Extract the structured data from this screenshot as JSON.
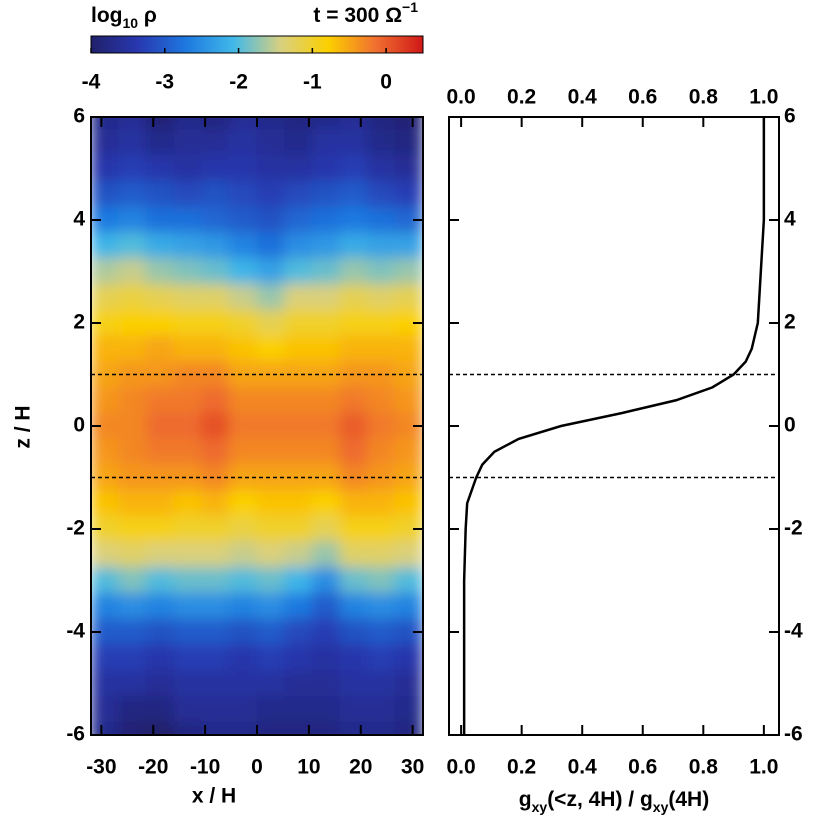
{
  "chart_data": [
    {
      "type": "heatmap",
      "title": [
        {
          "text": "t = 300 Ω"
        },
        {
          "text": "−1",
          "sup": true
        }
      ],
      "colorbar_label": [
        {
          "text": "log"
        },
        {
          "text": "10",
          "sub": true
        },
        {
          "text": " ρ"
        }
      ],
      "xlabel": "x / H",
      "ylabel": "z / H",
      "xlim": [
        -32,
        32
      ],
      "xticks": [
        -30,
        -20,
        -10,
        0,
        10,
        20,
        30
      ],
      "ylim": [
        -6,
        6
      ],
      "yticks": [
        -6,
        -4,
        -2,
        0,
        2,
        4,
        6
      ],
      "zlim": [
        -4,
        0.5
      ],
      "zticks": [
        -4,
        -3,
        -2,
        -1,
        0
      ],
      "colormap": [
        "#20206a",
        "#2838b0",
        "#1e78e0",
        "#40b8e8",
        "#d8d080",
        "#fcd000",
        "#f07030",
        "#d01818"
      ],
      "hlines": [
        -1,
        1
      ],
      "x": [
        -29.3,
        -24,
        -18.7,
        -13.3,
        -8,
        -2.7,
        2.7,
        8,
        13.3,
        18.7,
        24,
        29.3
      ],
      "y": [
        6,
        5.5,
        5,
        4.5,
        4,
        3.5,
        3,
        2.5,
        2,
        1.5,
        1,
        0.5,
        0,
        -0.5,
        -1,
        -1.5,
        -2,
        -2.5,
        -3,
        -3.5,
        -4,
        -4.5,
        -5,
        -5.5,
        -6
      ],
      "values": [
        [
          -3.7,
          -3.6,
          -3.9,
          -3.7,
          -3.8,
          -3.6,
          -3.7,
          -3.8,
          -3.7,
          -3.6,
          -3.8,
          -3.9
        ],
        [
          -3.6,
          -3.5,
          -3.7,
          -3.6,
          -3.6,
          -3.5,
          -3.6,
          -3.7,
          -3.5,
          -3.5,
          -3.7,
          -3.8
        ],
        [
          -3.4,
          -3.3,
          -3.4,
          -3.5,
          -3.4,
          -3.4,
          -3.5,
          -3.5,
          -3.4,
          -3.3,
          -3.5,
          -3.6
        ],
        [
          -3.1,
          -3.0,
          -3.1,
          -3.2,
          -3.1,
          -3.2,
          -3.3,
          -3.2,
          -3.1,
          -3.0,
          -3.2,
          -3.3
        ],
        [
          -2.7,
          -2.6,
          -2.8,
          -2.8,
          -2.9,
          -3.0,
          -3.1,
          -2.9,
          -2.8,
          -2.7,
          -2.8,
          -2.9
        ],
        [
          -2.1,
          -2.0,
          -2.2,
          -2.3,
          -2.4,
          -2.6,
          -2.8,
          -2.5,
          -2.4,
          -2.2,
          -2.3,
          -2.3
        ],
        [
          -1.6,
          -1.5,
          -1.7,
          -1.8,
          -1.9,
          -2.1,
          -2.3,
          -2.0,
          -1.9,
          -1.7,
          -1.8,
          -1.7
        ],
        [
          -1.2,
          -1.1,
          -1.2,
          -1.3,
          -1.3,
          -1.5,
          -1.7,
          -1.4,
          -1.4,
          -1.2,
          -1.3,
          -1.2
        ],
        [
          -0.9,
          -0.8,
          -0.8,
          -0.9,
          -0.9,
          -1.0,
          -1.2,
          -1.0,
          -1.0,
          -0.9,
          -0.9,
          -0.8
        ],
        [
          -0.6,
          -0.6,
          -0.5,
          -0.6,
          -0.6,
          -0.7,
          -0.8,
          -0.7,
          -0.7,
          -0.6,
          -0.6,
          -0.6
        ],
        [
          -0.5,
          -0.4,
          -0.4,
          -0.3,
          -0.3,
          -0.5,
          -0.5,
          -0.5,
          -0.5,
          -0.4,
          -0.4,
          -0.5
        ],
        [
          -0.4,
          -0.3,
          -0.2,
          -0.2,
          -0.1,
          -0.3,
          -0.3,
          -0.3,
          -0.3,
          -0.2,
          -0.3,
          -0.4
        ],
        [
          -0.3,
          -0.3,
          -0.1,
          -0.1,
          0.1,
          -0.2,
          -0.2,
          -0.2,
          -0.2,
          0.0,
          -0.2,
          -0.3
        ],
        [
          -0.4,
          -0.3,
          -0.2,
          -0.2,
          -0.1,
          -0.3,
          -0.3,
          -0.3,
          -0.3,
          -0.1,
          -0.3,
          -0.4
        ],
        [
          -0.5,
          -0.4,
          -0.4,
          -0.4,
          -0.3,
          -0.5,
          -0.5,
          -0.5,
          -0.5,
          -0.3,
          -0.4,
          -0.5
        ],
        [
          -0.7,
          -0.6,
          -0.6,
          -0.7,
          -0.6,
          -0.8,
          -0.7,
          -0.7,
          -0.8,
          -0.6,
          -0.6,
          -0.7
        ],
        [
          -1.0,
          -0.9,
          -0.9,
          -1.0,
          -1.0,
          -1.1,
          -1.0,
          -1.0,
          -1.2,
          -0.9,
          -0.9,
          -1.0
        ],
        [
          -1.4,
          -1.3,
          -1.4,
          -1.4,
          -1.4,
          -1.5,
          -1.4,
          -1.5,
          -1.7,
          -1.3,
          -1.3,
          -1.4
        ],
        [
          -2.0,
          -1.8,
          -2.0,
          -1.9,
          -1.9,
          -2.0,
          -1.9,
          -2.1,
          -2.5,
          -1.9,
          -1.8,
          -2.0
        ],
        [
          -2.6,
          -2.5,
          -2.6,
          -2.5,
          -2.5,
          -2.6,
          -2.5,
          -2.7,
          -3.0,
          -2.6,
          -2.5,
          -2.6
        ],
        [
          -3.0,
          -3.0,
          -3.1,
          -3.0,
          -3.0,
          -3.1,
          -3.0,
          -3.2,
          -3.3,
          -3.1,
          -3.0,
          -3.1
        ],
        [
          -3.3,
          -3.3,
          -3.4,
          -3.3,
          -3.3,
          -3.4,
          -3.3,
          -3.4,
          -3.5,
          -3.4,
          -3.3,
          -3.4
        ],
        [
          -3.5,
          -3.5,
          -3.6,
          -3.5,
          -3.5,
          -3.5,
          -3.5,
          -3.6,
          -3.6,
          -3.5,
          -3.5,
          -3.6
        ],
        [
          -3.6,
          -3.8,
          -3.8,
          -3.6,
          -3.6,
          -3.6,
          -3.7,
          -3.7,
          -3.7,
          -3.6,
          -3.6,
          -3.7
        ],
        [
          -3.7,
          -3.9,
          -4.0,
          -3.8,
          -3.7,
          -3.7,
          -3.8,
          -3.8,
          -3.8,
          -3.7,
          -3.7,
          -3.8
        ]
      ]
    },
    {
      "type": "line",
      "xlabel": [
        {
          "text": "g"
        },
        {
          "text": "xy",
          "sub": true
        },
        {
          "text": "(<z, 4H) / g"
        },
        {
          "text": "xy",
          "sub": true
        },
        {
          "text": "(4H)"
        }
      ],
      "xlim": [
        -0.04,
        1.05
      ],
      "xticks": [
        {
          "value": 0,
          "label": "0.0"
        },
        0.2,
        0.4,
        0.6,
        0.8,
        {
          "value": 1,
          "label": "1.0"
        }
      ],
      "ylim": [
        -6,
        6
      ],
      "yticks": [
        -6,
        -4,
        -2,
        0,
        2,
        4,
        6
      ],
      "hlines": [
        -1,
        1
      ],
      "color": "#000000",
      "y": [
        -6,
        -4,
        -3,
        -2,
        -1.5,
        -1,
        -0.75,
        -0.5,
        -0.25,
        0,
        0.25,
        0.5,
        0.75,
        1,
        1.25,
        1.5,
        2,
        3,
        4,
        5,
        6
      ],
      "values": [
        0.01,
        0.01,
        0.01,
        0.015,
        0.02,
        0.05,
        0.07,
        0.11,
        0.19,
        0.33,
        0.53,
        0.71,
        0.83,
        0.9,
        0.94,
        0.96,
        0.98,
        0.99,
        1.0,
        1.0,
        1.0
      ]
    }
  ]
}
